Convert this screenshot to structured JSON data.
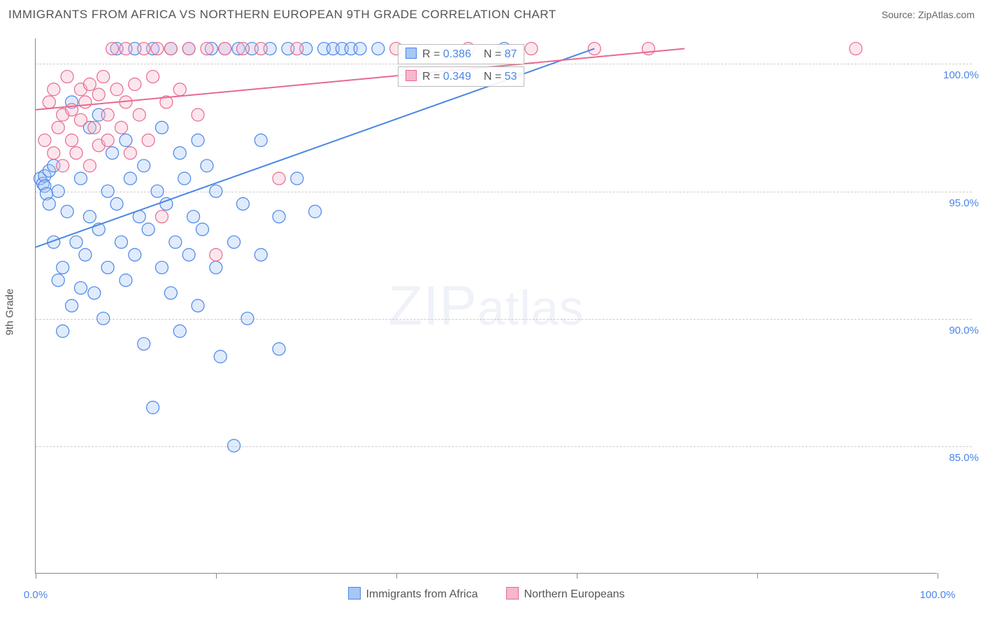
{
  "header": {
    "title": "IMMIGRANTS FROM AFRICA VS NORTHERN EUROPEAN 9TH GRADE CORRELATION CHART",
    "source_prefix": "Source: ",
    "source_link": "ZipAtlas.com"
  },
  "chart": {
    "type": "scatter",
    "ylabel": "9th Grade",
    "watermark": "ZIPatlas",
    "background_color": "#ffffff",
    "grid_color": "#cccccc",
    "axis_color": "#888888",
    "tick_label_color": "#4a86e8",
    "xlim": [
      0,
      100
    ],
    "ylim": [
      80,
      101
    ],
    "xticks": [
      {
        "pos": 0,
        "label": "0.0%"
      },
      {
        "pos": 20,
        "label": ""
      },
      {
        "pos": 40,
        "label": ""
      },
      {
        "pos": 60,
        "label": ""
      },
      {
        "pos": 80,
        "label": ""
      },
      {
        "pos": 100,
        "label": "100.0%"
      }
    ],
    "yticks": [
      {
        "pos": 85,
        "label": "85.0%"
      },
      {
        "pos": 90,
        "label": "90.0%"
      },
      {
        "pos": 95,
        "label": "95.0%"
      },
      {
        "pos": 100,
        "label": "100.0%"
      }
    ],
    "series": [
      {
        "name": "Immigrants from Africa",
        "color_stroke": "#4a86e8",
        "color_fill": "#a7c7f5",
        "marker_radius": 9,
        "trend": {
          "x1": 0,
          "y1": 92.8,
          "x2": 62,
          "y2": 100.6
        },
        "stats": {
          "R": "0.386",
          "N": "87"
        },
        "points": [
          [
            0.5,
            95.5
          ],
          [
            0.8,
            95.3
          ],
          [
            1,
            95.6
          ],
          [
            1,
            95.2
          ],
          [
            1.2,
            94.9
          ],
          [
            1.5,
            95.8
          ],
          [
            1.5,
            94.5
          ],
          [
            2,
            93.0
          ],
          [
            2,
            96.0
          ],
          [
            2.5,
            91.5
          ],
          [
            2.5,
            95.0
          ],
          [
            3,
            92.0
          ],
          [
            3,
            89.5
          ],
          [
            3.5,
            94.2
          ],
          [
            4,
            90.5
          ],
          [
            4,
            98.5
          ],
          [
            4.5,
            93.0
          ],
          [
            5,
            95.5
          ],
          [
            5,
            91.2
          ],
          [
            5.5,
            92.5
          ],
          [
            6,
            94.0
          ],
          [
            6,
            97.5
          ],
          [
            6.5,
            91.0
          ],
          [
            7,
            93.5
          ],
          [
            7,
            98.0
          ],
          [
            7.5,
            90.0
          ],
          [
            8,
            95.0
          ],
          [
            8,
            92.0
          ],
          [
            8.5,
            96.5
          ],
          [
            9,
            94.5
          ],
          [
            9,
            100.6
          ],
          [
            9.5,
            93.0
          ],
          [
            10,
            97.0
          ],
          [
            10,
            91.5
          ],
          [
            10.5,
            95.5
          ],
          [
            11,
            92.5
          ],
          [
            11,
            100.6
          ],
          [
            11.5,
            94.0
          ],
          [
            12,
            96.0
          ],
          [
            12,
            89.0
          ],
          [
            12.5,
            93.5
          ],
          [
            13,
            86.5
          ],
          [
            13,
            100.6
          ],
          [
            13.5,
            95.0
          ],
          [
            14,
            92.0
          ],
          [
            14,
            97.5
          ],
          [
            14.5,
            94.5
          ],
          [
            15,
            91.0
          ],
          [
            15,
            100.6
          ],
          [
            15.5,
            93.0
          ],
          [
            16,
            96.5
          ],
          [
            16,
            89.5
          ],
          [
            16.5,
            95.5
          ],
          [
            17,
            92.5
          ],
          [
            17,
            100.6
          ],
          [
            17.5,
            94.0
          ],
          [
            18,
            97.0
          ],
          [
            18,
            90.5
          ],
          [
            18.5,
            93.5
          ],
          [
            19,
            96.0
          ],
          [
            19.5,
            100.6
          ],
          [
            20,
            92.0
          ],
          [
            20,
            95.0
          ],
          [
            20.5,
            88.5
          ],
          [
            21,
            100.6
          ],
          [
            22,
            93.0
          ],
          [
            22,
            85.0
          ],
          [
            22.5,
            100.6
          ],
          [
            23,
            94.5
          ],
          [
            23.5,
            90.0
          ],
          [
            24,
            100.6
          ],
          [
            25,
            92.5
          ],
          [
            25,
            97.0
          ],
          [
            26,
            100.6
          ],
          [
            27,
            94.0
          ],
          [
            27,
            88.8
          ],
          [
            28,
            100.6
          ],
          [
            29,
            95.5
          ],
          [
            30,
            100.6
          ],
          [
            31,
            94.2
          ],
          [
            32,
            100.6
          ],
          [
            33,
            100.6
          ],
          [
            34,
            100.6
          ],
          [
            35,
            100.6
          ],
          [
            36,
            100.6
          ],
          [
            38,
            100.6
          ],
          [
            52,
            100.6
          ]
        ]
      },
      {
        "name": "Northern Europeans",
        "color_stroke": "#e86a8e",
        "color_fill": "#f7b8cc",
        "marker_radius": 9,
        "trend": {
          "x1": 0,
          "y1": 98.2,
          "x2": 72,
          "y2": 100.6
        },
        "stats": {
          "R": "0.349",
          "N": "53"
        },
        "points": [
          [
            1,
            97.0
          ],
          [
            1.5,
            98.5
          ],
          [
            2,
            96.5
          ],
          [
            2,
            99.0
          ],
          [
            2.5,
            97.5
          ],
          [
            3,
            98.0
          ],
          [
            3,
            96.0
          ],
          [
            3.5,
            99.5
          ],
          [
            4,
            97.0
          ],
          [
            4,
            98.2
          ],
          [
            4.5,
            96.5
          ],
          [
            5,
            99.0
          ],
          [
            5,
            97.8
          ],
          [
            5.5,
            98.5
          ],
          [
            6,
            96.0
          ],
          [
            6,
            99.2
          ],
          [
            6.5,
            97.5
          ],
          [
            7,
            98.8
          ],
          [
            7,
            96.8
          ],
          [
            7.5,
            99.5
          ],
          [
            8,
            97.0
          ],
          [
            8,
            98.0
          ],
          [
            8.5,
            100.6
          ],
          [
            9,
            99.0
          ],
          [
            9.5,
            97.5
          ],
          [
            10,
            98.5
          ],
          [
            10,
            100.6
          ],
          [
            10.5,
            96.5
          ],
          [
            11,
            99.2
          ],
          [
            11.5,
            98.0
          ],
          [
            12,
            100.6
          ],
          [
            12.5,
            97.0
          ],
          [
            13,
            99.5
          ],
          [
            13.5,
            100.6
          ],
          [
            14,
            94.0
          ],
          [
            14.5,
            98.5
          ],
          [
            15,
            100.6
          ],
          [
            16,
            99.0
          ],
          [
            17,
            100.6
          ],
          [
            18,
            98.0
          ],
          [
            19,
            100.6
          ],
          [
            20,
            92.5
          ],
          [
            21,
            100.6
          ],
          [
            23,
            100.6
          ],
          [
            25,
            100.6
          ],
          [
            27,
            95.5
          ],
          [
            29,
            100.6
          ],
          [
            40,
            100.6
          ],
          [
            48,
            100.6
          ],
          [
            55,
            100.6
          ],
          [
            62,
            100.6
          ],
          [
            68,
            100.6
          ],
          [
            91,
            100.6
          ]
        ]
      }
    ],
    "stat_box_labels": {
      "R": "R =",
      "N": "N ="
    },
    "legend_bottom": [
      {
        "label": "Immigrants from Africa",
        "series_idx": 0
      },
      {
        "label": "Northern Europeans",
        "series_idx": 1
      }
    ]
  }
}
